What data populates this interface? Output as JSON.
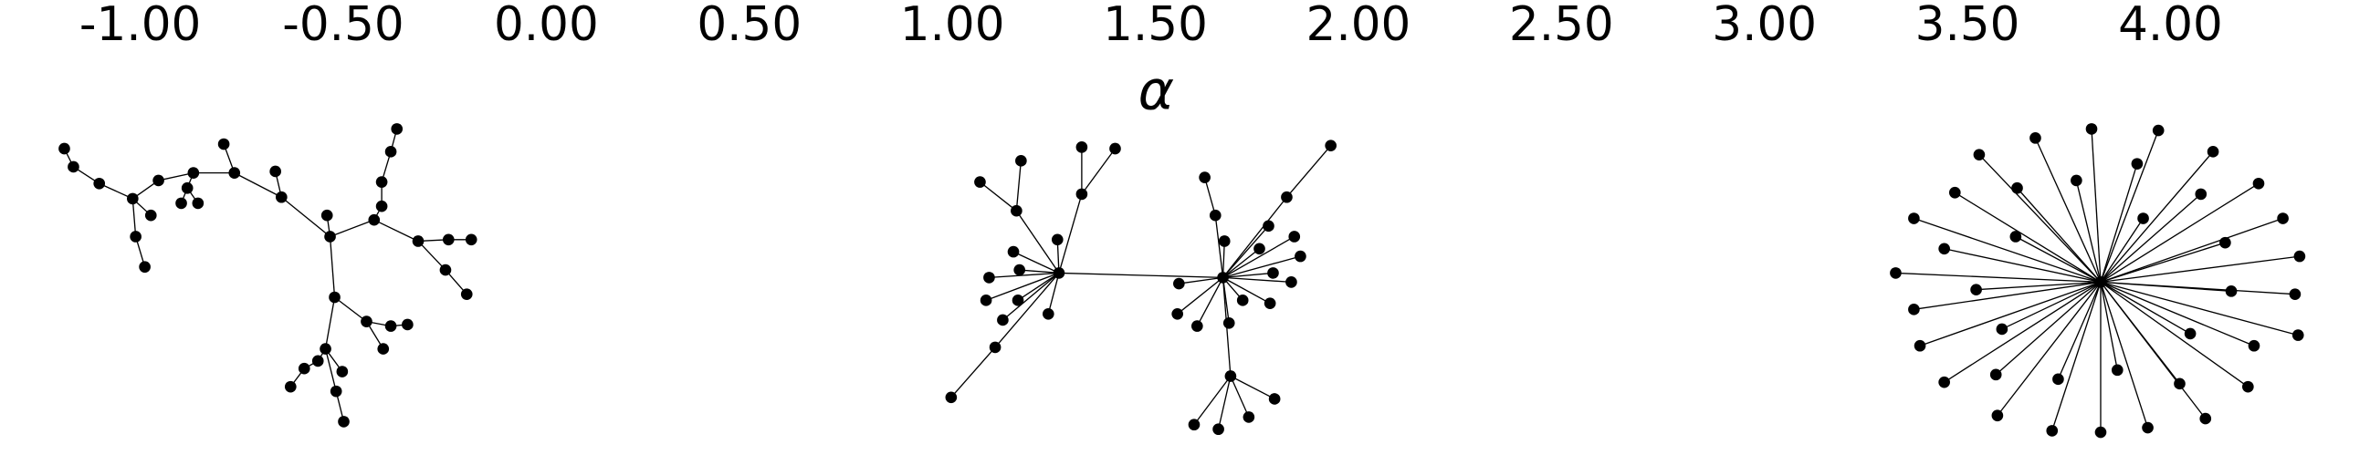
{
  "chart_data": {
    "type": "network",
    "xlabel": "α",
    "xlim": [
      -1.344,
      4.49
    ],
    "xticks": [
      {
        "value": -1,
        "label": "-1.00"
      },
      {
        "value": -0.5,
        "label": "-0.50"
      },
      {
        "value": 0,
        "label": "0.00"
      },
      {
        "value": 0.5,
        "label": "0.50"
      },
      {
        "value": 1,
        "label": "1.00"
      },
      {
        "value": 1.5,
        "label": "1.50"
      },
      {
        "value": 2,
        "label": "2.00"
      },
      {
        "value": 2.5,
        "label": "2.50"
      },
      {
        "value": 3,
        "label": "3.00"
      },
      {
        "value": 3.5,
        "label": "3.50"
      },
      {
        "value": 4,
        "label": "4.00"
      }
    ]
  }
}
